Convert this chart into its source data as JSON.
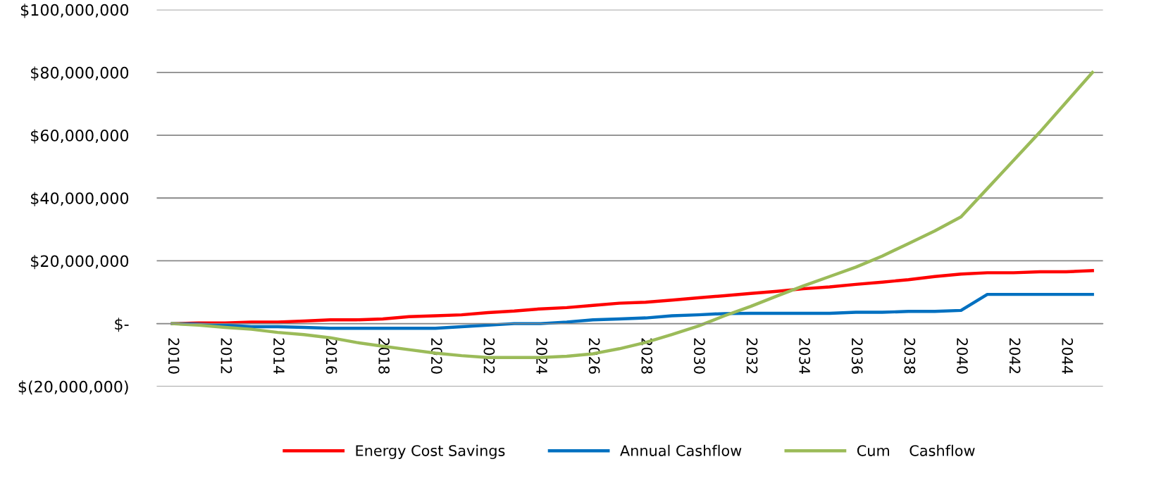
{
  "chart_data": {
    "type": "line",
    "categories": [
      "2010",
      null,
      "2012",
      null,
      "2014",
      null,
      "2016",
      null,
      "2018",
      null,
      "2020",
      null,
      "2022",
      null,
      "2024",
      null,
      "2026",
      null,
      "2028",
      null,
      "2030",
      null,
      "2032",
      null,
      "2034",
      null,
      "2036",
      null,
      "2038",
      null,
      "2040",
      null,
      "2042",
      null,
      "2044",
      null
    ],
    "series": [
      {
        "name": "Energy Cost Savings",
        "color": "#ff0000",
        "values": [
          0,
          200000,
          200000,
          500000,
          500000,
          800000,
          1200000,
          1200000,
          1500000,
          2200000,
          2500000,
          2800000,
          3500000,
          4000000,
          4700000,
          5100000,
          5800000,
          6500000,
          6800000,
          7500000,
          8200000,
          8900000,
          9600000,
          10300000,
          11100000,
          11700000,
          12500000,
          13200000,
          14000000,
          15000000,
          15800000,
          16200000,
          16200000,
          16500000,
          16500000,
          16900000
        ]
      },
      {
        "name": "Annual Cashflow",
        "color": "#0070c0",
        "values": [
          0,
          -200000,
          -500000,
          -1000000,
          -1000000,
          -1200000,
          -1500000,
          -1500000,
          -1500000,
          -1500000,
          -1500000,
          -1000000,
          -500000,
          0,
          0,
          500000,
          1200000,
          1500000,
          1800000,
          2500000,
          2800000,
          3200000,
          3300000,
          3300000,
          3300000,
          3300000,
          3600000,
          3600000,
          3900000,
          3900000,
          4200000,
          9300000,
          9300000,
          9300000,
          9300000,
          9300000
        ]
      },
      {
        "name": "Cum    Cashflow",
        "color": "#9bbb59",
        "values": [
          0,
          -500000,
          -1200000,
          -1800000,
          -2800000,
          -3500000,
          -4500000,
          -6000000,
          -7200000,
          -8300000,
          -9400000,
          -10200000,
          -10800000,
          -10800000,
          -10800000,
          -10400000,
          -9600000,
          -8000000,
          -6000000,
          -3500000,
          -800000,
          2500000,
          5500000,
          8800000,
          12000000,
          15000000,
          18000000,
          21500000,
          25500000,
          29500000,
          34000000,
          43000000,
          52000000,
          61000000,
          70500000,
          80000000
        ]
      }
    ],
    "ylim": [
      -20000000,
      100000000
    ],
    "yticks": [
      {
        "value": -20000000,
        "label": "$(20,000,000)"
      },
      {
        "value": 0,
        "label": "$-"
      },
      {
        "value": 20000000,
        "label": "$20,000,000"
      },
      {
        "value": 40000000,
        "label": "$40,000,000"
      },
      {
        "value": 60000000,
        "label": "$60,000,000"
      },
      {
        "value": 80000000,
        "label": "$80,000,000"
      },
      {
        "value": 100000000,
        "label": "$100,000,000"
      }
    ],
    "grid": "y",
    "legend": "bottom",
    "marker": "none",
    "line_style": "solid"
  }
}
